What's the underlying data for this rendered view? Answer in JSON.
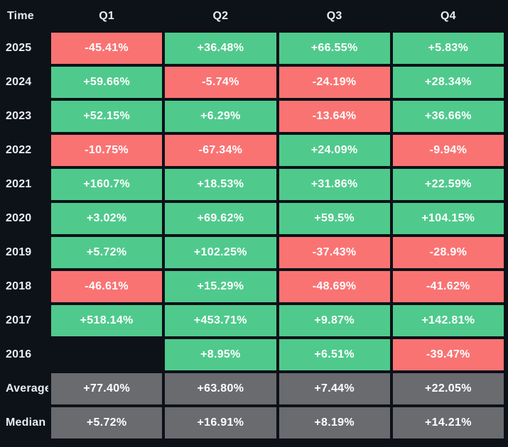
{
  "chart_data": {
    "type": "heatmap",
    "corner_label": "Time",
    "columns": [
      "Q1",
      "Q2",
      "Q3",
      "Q4"
    ],
    "rows": [
      {
        "label": "2025",
        "cells": [
          {
            "text": "-45.41%",
            "type": "negative"
          },
          {
            "text": "+36.48%",
            "type": "positive"
          },
          {
            "text": "+66.55%",
            "type": "positive"
          },
          {
            "text": "+5.83%",
            "type": "positive"
          }
        ]
      },
      {
        "label": "2024",
        "cells": [
          {
            "text": "+59.66%",
            "type": "positive"
          },
          {
            "text": "-5.74%",
            "type": "negative"
          },
          {
            "text": "-24.19%",
            "type": "negative"
          },
          {
            "text": "+28.34%",
            "type": "positive"
          }
        ]
      },
      {
        "label": "2023",
        "cells": [
          {
            "text": "+52.15%",
            "type": "positive"
          },
          {
            "text": "+6.29%",
            "type": "positive"
          },
          {
            "text": "-13.64%",
            "type": "negative"
          },
          {
            "text": "+36.66%",
            "type": "positive"
          }
        ]
      },
      {
        "label": "2022",
        "cells": [
          {
            "text": "-10.75%",
            "type": "negative"
          },
          {
            "text": "-67.34%",
            "type": "negative"
          },
          {
            "text": "+24.09%",
            "type": "positive"
          },
          {
            "text": "-9.94%",
            "type": "negative"
          }
        ]
      },
      {
        "label": "2021",
        "cells": [
          {
            "text": "+160.7%",
            "type": "positive"
          },
          {
            "text": "+18.53%",
            "type": "positive"
          },
          {
            "text": "+31.86%",
            "type": "positive"
          },
          {
            "text": "+22.59%",
            "type": "positive"
          }
        ]
      },
      {
        "label": "2020",
        "cells": [
          {
            "text": "+3.02%",
            "type": "positive"
          },
          {
            "text": "+69.62%",
            "type": "positive"
          },
          {
            "text": "+59.5%",
            "type": "positive"
          },
          {
            "text": "+104.15%",
            "type": "positive"
          }
        ]
      },
      {
        "label": "2019",
        "cells": [
          {
            "text": "+5.72%",
            "type": "positive"
          },
          {
            "text": "+102.25%",
            "type": "positive"
          },
          {
            "text": "-37.43%",
            "type": "negative"
          },
          {
            "text": "-28.9%",
            "type": "negative"
          }
        ]
      },
      {
        "label": "2018",
        "cells": [
          {
            "text": "-46.61%",
            "type": "negative"
          },
          {
            "text": "+15.29%",
            "type": "positive"
          },
          {
            "text": "-48.69%",
            "type": "negative"
          },
          {
            "text": "-41.62%",
            "type": "negative"
          }
        ]
      },
      {
        "label": "2017",
        "cells": [
          {
            "text": "+518.14%",
            "type": "positive"
          },
          {
            "text": "+453.71%",
            "type": "positive"
          },
          {
            "text": "+9.87%",
            "type": "positive"
          },
          {
            "text": "+142.81%",
            "type": "positive"
          }
        ]
      },
      {
        "label": "2016",
        "cells": [
          {
            "text": "",
            "type": "empty"
          },
          {
            "text": "+8.95%",
            "type": "positive"
          },
          {
            "text": "+6.51%",
            "type": "positive"
          },
          {
            "text": "-39.47%",
            "type": "negative"
          }
        ]
      },
      {
        "label": "Average",
        "cells": [
          {
            "text": "+77.40%",
            "type": "summary"
          },
          {
            "text": "+63.80%",
            "type": "summary"
          },
          {
            "text": "+7.44%",
            "type": "summary"
          },
          {
            "text": "+22.05%",
            "type": "summary"
          }
        ]
      },
      {
        "label": "Median",
        "cells": [
          {
            "text": "+5.72%",
            "type": "summary"
          },
          {
            "text": "+16.91%",
            "type": "summary"
          },
          {
            "text": "+8.19%",
            "type": "summary"
          },
          {
            "text": "+14.21%",
            "type": "summary"
          }
        ]
      }
    ],
    "values_matrix": [
      [
        -45.41,
        36.48,
        66.55,
        5.83
      ],
      [
        59.66,
        -5.74,
        -24.19,
        28.34
      ],
      [
        52.15,
        6.29,
        -13.64,
        36.66
      ],
      [
        -10.75,
        -67.34,
        24.09,
        -9.94
      ],
      [
        160.7,
        18.53,
        31.86,
        22.59
      ],
      [
        3.02,
        69.62,
        59.5,
        104.15
      ],
      [
        5.72,
        102.25,
        -37.43,
        -28.9
      ],
      [
        -46.61,
        15.29,
        -48.69,
        -41.62
      ],
      [
        518.14,
        453.71,
        9.87,
        142.81
      ],
      [
        null,
        8.95,
        6.51,
        -39.47
      ],
      [
        77.4,
        63.8,
        7.44,
        22.05
      ],
      [
        5.72,
        16.91,
        8.19,
        14.21
      ]
    ],
    "legend": "none",
    "colors": {
      "positive": "#4fca8c",
      "negative": "#fa7373",
      "summary": "#6a6b6f",
      "background": "#0d1118",
      "label_text": "#eaedf2",
      "cell_text": "#ffffff"
    }
  }
}
